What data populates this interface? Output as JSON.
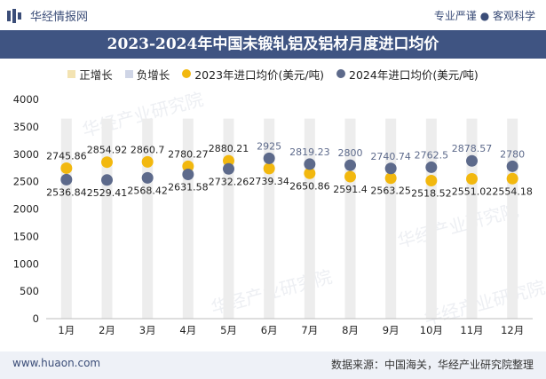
{
  "header": {
    "brand": "华经情报网",
    "tagline": "专业严谨 ● 客观科学"
  },
  "title": "2023-2024年中国未锻轧铝及铝材月度进口均价",
  "legend": [
    {
      "label": "正增长",
      "shape": "square",
      "color": "#f3e3b2"
    },
    {
      "label": "负增长",
      "shape": "square",
      "color": "#cfd5e6"
    },
    {
      "label": "2023年进口均价(美元/吨)",
      "shape": "circle",
      "color": "#f2b80f"
    },
    {
      "label": "2024年进口均价(美元/吨)",
      "shape": "circle",
      "color": "#5d6a8b"
    }
  ],
  "footer": {
    "website": "www.huaon.com",
    "source": "数据来源：中国海关，华经产业研究院整理"
  },
  "watermark": "华经产业研究院",
  "chart_data": {
    "type": "scatter",
    "categories": [
      "1月",
      "2月",
      "3月",
      "4月",
      "5月",
      "6月",
      "7月",
      "8月",
      "9月",
      "10月",
      "11月",
      "12月"
    ],
    "ylim": [
      0,
      4000
    ],
    "yticks": [
      0,
      500,
      1000,
      1500,
      2000,
      2500,
      3000,
      3500,
      4000
    ],
    "grid": false,
    "legend_position": "top",
    "series": [
      {
        "name": "2023年进口均价(美元/吨)",
        "color": "#f2b80f",
        "values": [
          2745.86,
          2854.92,
          2860.7,
          2780.27,
          2880.21,
          2739.34,
          2650.86,
          2591.4,
          2563.25,
          2518.52,
          2551.02,
          2554.18
        ]
      },
      {
        "name": "2024年进口均价(美元/吨)",
        "color": "#5d6a8b",
        "values": [
          2536.84,
          2529.41,
          2568.42,
          2631.58,
          2732.26,
          2925,
          2819.23,
          2800,
          2740.74,
          2762.5,
          2878.57,
          2780
        ]
      }
    ],
    "labels_2023": [
      "2745.86",
      "2854.92",
      "2860.7",
      "2780.27",
      "2880.21",
      "2739.34",
      "2650.86",
      "2591.4",
      "2563.25",
      "2518.52",
      "2551.02",
      "2554.18"
    ],
    "labels_2024": [
      "2536.84",
      "2529.41",
      "2568.42",
      "2631.58",
      "2732.26",
      "2925",
      "2819.23",
      "2800",
      "2740.74",
      "2762.5",
      "2878.57",
      "2780"
    ]
  }
}
